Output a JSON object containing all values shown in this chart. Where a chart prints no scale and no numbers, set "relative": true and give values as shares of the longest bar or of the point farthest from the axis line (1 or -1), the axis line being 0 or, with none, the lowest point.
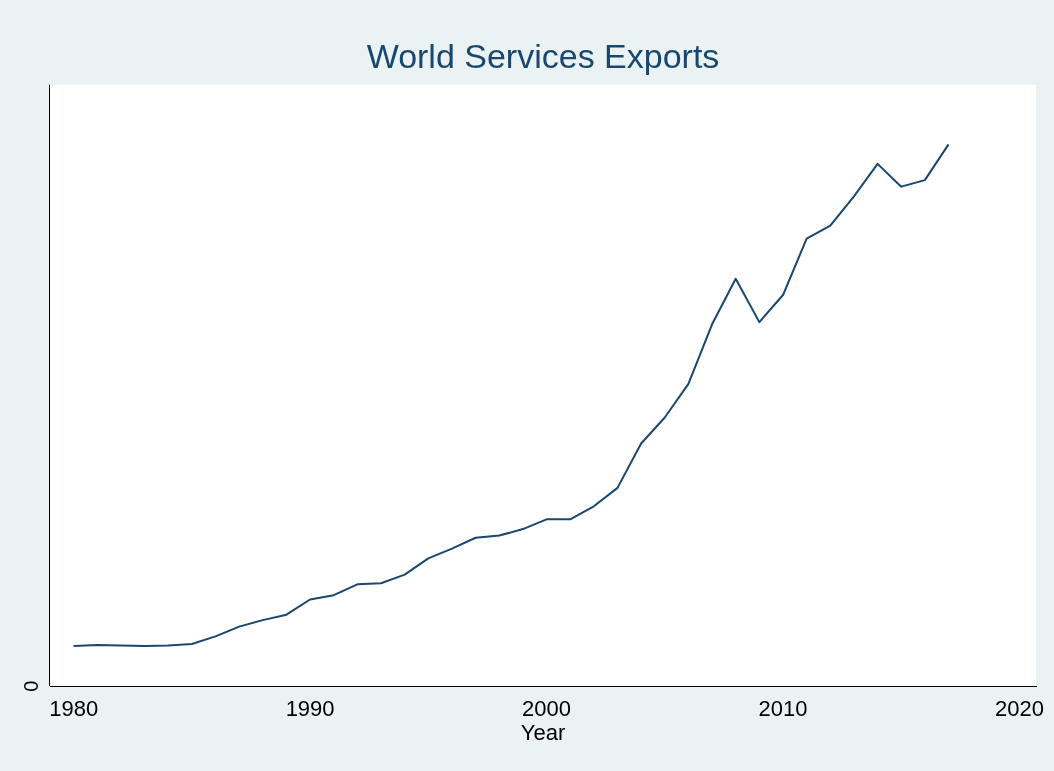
{
  "chart_data": {
    "type": "line",
    "title": "World Services Exports",
    "xlabel": "Year",
    "relative": true,
    "xlim": [
      1979,
      2020.7
    ],
    "xticks": [
      1980,
      1990,
      2000,
      2010,
      2020
    ],
    "grid": false,
    "legend": false,
    "marker": "none",
    "line_style": "solid",
    "annotations": [
      "0"
    ],
    "x": [
      1980,
      1981,
      1982,
      1983,
      1984,
      1985,
      1986,
      1987,
      1988,
      1989,
      1990,
      1991,
      1992,
      1993,
      1994,
      1995,
      1996,
      1997,
      1998,
      1999,
      2000,
      2001,
      2002,
      2003,
      2004,
      2005,
      2006,
      2007,
      2008,
      2009,
      2010,
      2011,
      2012,
      2013,
      2014,
      2015,
      2016,
      2017
    ],
    "series": [
      {
        "color": "#1a476f",
        "values": [
          0.074,
          0.076,
          0.075,
          0.074,
          0.075,
          0.078,
          0.092,
          0.11,
          0.122,
          0.132,
          0.16,
          0.168,
          0.188,
          0.19,
          0.206,
          0.236,
          0.254,
          0.274,
          0.278,
          0.29,
          0.308,
          0.308,
          0.332,
          0.366,
          0.448,
          0.496,
          0.558,
          0.668,
          0.752,
          0.672,
          0.722,
          0.826,
          0.85,
          0.904,
          0.964,
          0.922,
          0.934,
          1
        ]
      }
    ]
  }
}
